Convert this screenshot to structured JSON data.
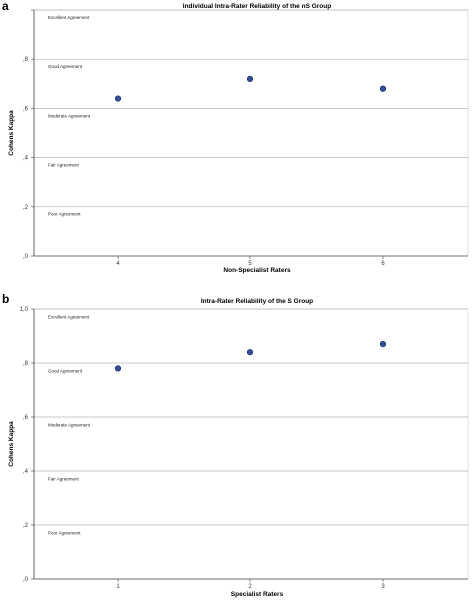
{
  "chart_data": [
    {
      "panel": "a",
      "type": "scatter",
      "title": "Individual Intra-Rater Reliability of the nS Group",
      "xlabel": "Non-Specialist Raters",
      "ylabel": "Cohens Kappa",
      "categories": [
        "4",
        "5",
        "6"
      ],
      "values": [
        0.64,
        0.72,
        0.68
      ],
      "ylim": [
        0,
        1
      ],
      "yticks": [
        ",0",
        ",2",
        ",4",
        ",6",
        ",8",
        ""
      ],
      "bands": [
        {
          "label": "Excellent Agreement",
          "y": 0.97
        },
        {
          "label": "Good Agreement",
          "y": 0.77
        },
        {
          "label": "Moderate Agreement",
          "y": 0.57
        },
        {
          "label": "Fair Agreement",
          "y": 0.37
        },
        {
          "label": "Poor Agreement",
          "y": 0.17
        }
      ],
      "grid": true,
      "marker_color": "#2f4f9e"
    },
    {
      "panel": "b",
      "type": "scatter",
      "title": "Intra-Rater Reliability of the S Group",
      "xlabel": "Specialist Raters",
      "ylabel": "Cohens Kappa",
      "categories": [
        "1",
        "2",
        "3"
      ],
      "values": [
        0.78,
        0.84,
        0.87
      ],
      "ylim": [
        0,
        1
      ],
      "yticks": [
        ",0",
        ",2",
        ",4",
        ",6",
        ",8",
        "1,0"
      ],
      "bands": [
        {
          "label": "Excellent Agreement",
          "y": 0.97
        },
        {
          "label": "Good Agreement",
          "y": 0.77
        },
        {
          "label": "Moderate Agreement",
          "y": 0.57
        },
        {
          "label": "Fair Agreement",
          "y": 0.37
        },
        {
          "label": "Poor Agreement",
          "y": 0.17
        }
      ],
      "grid": true,
      "marker_color": "#2f4f9e"
    }
  ]
}
